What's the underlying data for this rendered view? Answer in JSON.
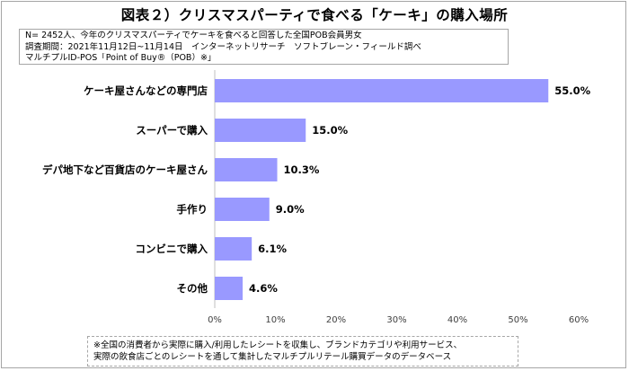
{
  "title": "図表２）クリスマスパーティで食べる「ケーキ」の購入場所",
  "notes": [
    "N= 2452人、今年のクリスマスパーティでケーキを食べると回答した全国POB会員男女",
    "調査期間：2021年11月12日~11月14日　インターネットリサーチ　ソフトブレーン・フィールド調べ",
    "マルチプルID-POS「Point of Buy®（POB）※」"
  ],
  "footer": [
    "※全国の消費者から実際に購入/利用したレシートを収集し、ブランドカテゴリや利用サービス、",
    "実際の飲食店ごとのレシートを通して集計したマルチプルリテール購買データのデータベース"
  ],
  "chart_data": {
    "type": "bar",
    "orientation": "horizontal",
    "categories": [
      "ケーキ屋さんなどの専門店",
      "スーパーで購入",
      "デパ地下など百貨店のケーキ屋さん",
      "手作り",
      "コンビニで購入",
      "その他"
    ],
    "values": [
      55.0,
      15.0,
      10.3,
      9.0,
      6.1,
      4.6
    ],
    "value_labels": [
      "55.0%",
      "15.0%",
      "10.3%",
      "9.0%",
      "6.1%",
      "4.6%"
    ],
    "xlim": [
      0,
      60
    ],
    "x_ticks": [
      0,
      10,
      20,
      30,
      40,
      50,
      60
    ],
    "x_tick_labels": [
      "0%",
      "10%",
      "20%",
      "30%",
      "40%",
      "50%",
      "60%"
    ],
    "bar_color": "#9999ff",
    "grid": false,
    "legend": "none"
  }
}
